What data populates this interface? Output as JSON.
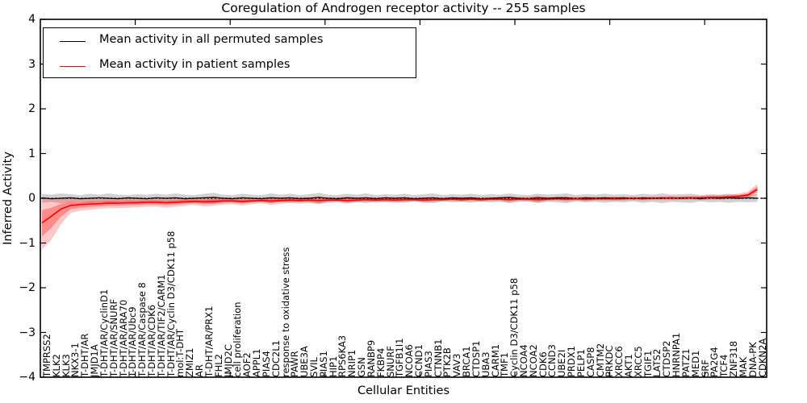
{
  "title": "Coregulation of Androgen receptor activity -- 255 samples",
  "axes": {
    "ylabel": "Inferred Activity",
    "xlabel": "Cellular Entities",
    "ytick_values": [
      4,
      3,
      2,
      1,
      0,
      -1,
      -2,
      -3,
      -4
    ],
    "ytick_labels": [
      "4",
      "3",
      "2",
      "1",
      "0",
      "−1",
      "−2",
      "−3",
      "−4"
    ],
    "xtick_units": [
      10,
      20,
      30,
      40,
      50,
      60,
      70
    ],
    "ylim": [
      -4,
      4
    ]
  },
  "colors": {
    "permuted_line": "#000000",
    "patient_line": "#ff0000",
    "permuted_band": "rgba(0,0,0,0.18)",
    "patient_band_outer": "rgba(255,0,0,0.22)",
    "patient_band_inner": "rgba(255,0,0,0.30)",
    "frame": "#000000"
  },
  "chart_data": {
    "type": "line",
    "title": "Coregulation of Androgen receptor activity -- 255 samples",
    "xlabel": "Cellular Entities",
    "ylabel": "Inferred Activity",
    "ylim": [
      -4,
      4
    ],
    "grid": false,
    "legend_position": "upper left",
    "reference_line": {
      "y": 0,
      "style": "dotted",
      "color": "#000000"
    },
    "inner_band_ratio": 0.5,
    "categories": [
      "TMPRSS2",
      "KLK2",
      "KLK3",
      "NKX3-1",
      "T-DHT/AR",
      "JMJD1A",
      "T-DHT/AR/CyclinD1",
      "T-DHT/AR/SNURF",
      "T-DHT/AR/ARA70",
      "T-DHT/AR/Ubc9",
      "T-DHT/AR/Caspase 8",
      "T-DHT/AR/CDK6",
      "T-DHT/AR/TIF2/CARM1",
      "T-DHT/AR/Cyclin D3/CDK11 p58",
      "mol:T-DHT",
      "ZMIZ1",
      "AR",
      "T-DHT/AR/PRX1",
      "FHL2",
      "JMJD2C",
      "cell proliferation",
      "AOF2",
      "APPL1",
      "PIAS4",
      "CDC2L1",
      "response to oxidative stress",
      "PAWR",
      "UBE3A",
      "SVIL",
      "PIAS1",
      "HIP1",
      "RPS6KA3",
      "NRIP1",
      "GSN",
      "RANBP9",
      "FKBP4",
      "SNURF",
      "TGFB1I1",
      "NCOA6",
      "CCND1",
      "PIAS3",
      "CTNNB1",
      "PTK2B",
      "VAV3",
      "BRCA1",
      "CTDSP1",
      "UBA3",
      "CARM1",
      "TMF1",
      "Cyclin D3/CDK11 p58",
      "NCOA4",
      "NCOA2",
      "CDK6",
      "CCND3",
      "UBE2I",
      "PRDX1",
      "PELP1",
      "CASP8",
      "CMTM2",
      "PRKDC",
      "XRCC6",
      "AKT1",
      "XRCC5",
      "TGIF1",
      "LATS2",
      "CTDSP2",
      "HNRNPA1",
      "PATZ1",
      "MED1",
      "SRF",
      "PA2G4",
      "TCF4",
      "ZNF318",
      "MAK",
      "DNA-PK",
      "CDKN2A"
    ],
    "series": [
      {
        "name": "Mean activity in all permuted samples",
        "color": "#000000",
        "line_width": 1.3,
        "band_color": "rgba(0,0,0,0.18)",
        "values": [
          0.01,
          -0.01,
          0.0,
          0.01,
          -0.01,
          0.0,
          0.01,
          0.0,
          -0.01,
          0.01,
          0.0,
          -0.01,
          0.01,
          0.0,
          0.01,
          -0.01,
          0.0,
          0.01,
          0.02,
          0.0,
          -0.01,
          0.01,
          0.0,
          -0.01,
          0.01,
          0.0,
          0.01,
          -0.01,
          0.0,
          0.02,
          0.0,
          -0.01,
          0.01,
          0.0,
          0.01,
          -0.01,
          0.01,
          0.0,
          0.01,
          -0.01,
          0.0,
          0.01,
          -0.01,
          0.01,
          0.0,
          0.01,
          -0.01,
          0.0,
          0.01,
          0.02,
          0.0,
          -0.01,
          0.01,
          0.0,
          0.01,
          0.01,
          -0.01,
          0.01,
          0.0,
          0.01,
          0.0,
          0.01,
          -0.01,
          0.01,
          0.0,
          0.01,
          0.0,
          0.01,
          0.01,
          -0.01,
          0.01,
          0.0,
          0.01,
          0.0,
          0.01,
          0.0
        ],
        "band_upper": [
          0.1,
          0.08,
          0.11,
          0.09,
          0.07,
          0.1,
          0.08,
          0.11,
          0.08,
          0.07,
          0.09,
          0.08,
          0.1,
          0.08,
          0.11,
          0.08,
          0.07,
          0.1,
          0.12,
          0.08,
          0.07,
          0.1,
          0.08,
          0.07,
          0.11,
          0.08,
          0.1,
          0.07,
          0.09,
          0.12,
          0.08,
          0.07,
          0.1,
          0.08,
          0.11,
          0.07,
          0.09,
          0.08,
          0.1,
          0.07,
          0.09,
          0.11,
          0.07,
          0.09,
          0.08,
          0.1,
          0.07,
          0.09,
          0.08,
          0.11,
          0.08,
          0.07,
          0.1,
          0.08,
          0.09,
          0.11,
          0.07,
          0.09,
          0.08,
          0.1,
          0.08,
          0.09,
          0.07,
          0.1,
          0.08,
          0.11,
          0.08,
          0.09,
          0.1,
          0.07,
          0.09,
          0.08,
          0.1,
          0.08,
          0.09,
          0.08
        ],
        "band_lower": [
          -0.1,
          -0.08,
          -0.11,
          -0.09,
          -0.07,
          -0.1,
          -0.08,
          -0.11,
          -0.08,
          -0.07,
          -0.09,
          -0.08,
          -0.1,
          -0.08,
          -0.11,
          -0.08,
          -0.07,
          -0.1,
          -0.12,
          -0.08,
          -0.07,
          -0.1,
          -0.08,
          -0.07,
          -0.11,
          -0.08,
          -0.1,
          -0.07,
          -0.09,
          -0.12,
          -0.08,
          -0.07,
          -0.1,
          -0.08,
          -0.11,
          -0.07,
          -0.09,
          -0.08,
          -0.1,
          -0.07,
          -0.09,
          -0.11,
          -0.07,
          -0.09,
          -0.08,
          -0.1,
          -0.07,
          -0.09,
          -0.08,
          -0.11,
          -0.08,
          -0.07,
          -0.1,
          -0.08,
          -0.09,
          -0.11,
          -0.07,
          -0.09,
          -0.08,
          -0.1,
          -0.08,
          -0.09,
          -0.07,
          -0.1,
          -0.08,
          -0.11,
          -0.08,
          -0.09,
          -0.1,
          -0.07,
          -0.09,
          -0.08,
          -0.1,
          -0.08,
          -0.09,
          -0.08
        ]
      },
      {
        "name": "Mean activity in patient samples",
        "color": "#ff0000",
        "line_width": 1.6,
        "band_color": "rgba(255,0,0,0.22)",
        "inner_band_color": "rgba(255,0,0,0.30)",
        "values": [
          -0.55,
          -0.4,
          -0.24,
          -0.16,
          -0.14,
          -0.13,
          -0.12,
          -0.11,
          -0.11,
          -0.1,
          -0.1,
          -0.09,
          -0.09,
          -0.1,
          -0.09,
          -0.08,
          -0.07,
          -0.08,
          -0.07,
          -0.06,
          -0.06,
          -0.07,
          -0.06,
          -0.05,
          -0.06,
          -0.05,
          -0.04,
          -0.05,
          -0.04,
          -0.05,
          -0.04,
          -0.04,
          -0.05,
          -0.04,
          -0.03,
          -0.04,
          -0.03,
          -0.04,
          -0.03,
          -0.03,
          -0.04,
          -0.03,
          -0.03,
          -0.02,
          -0.03,
          -0.02,
          -0.03,
          -0.02,
          -0.02,
          -0.03,
          -0.02,
          -0.02,
          -0.03,
          -0.02,
          -0.01,
          -0.02,
          -0.01,
          -0.02,
          -0.01,
          -0.01,
          -0.01,
          -0.01,
          0.0,
          -0.01,
          0.0,
          0.0,
          0.01,
          0.0,
          0.01,
          0.01,
          0.02,
          0.02,
          0.03,
          0.04,
          0.07,
          0.2
        ],
        "band_upper": [
          0.02,
          -0.02,
          -0.01,
          0.0,
          -0.01,
          -0.01,
          -0.01,
          0.0,
          -0.01,
          0.0,
          -0.01,
          0.0,
          0.0,
          -0.01,
          0.0,
          0.01,
          0.01,
          0.02,
          0.03,
          0.02,
          0.01,
          0.02,
          0.01,
          0.01,
          0.03,
          0.02,
          0.02,
          0.02,
          0.02,
          0.03,
          0.02,
          0.01,
          0.04,
          0.01,
          0.02,
          0.02,
          0.02,
          0.02,
          0.02,
          0.01,
          0.02,
          0.02,
          0.01,
          0.02,
          0.02,
          0.02,
          0.02,
          0.02,
          0.02,
          0.03,
          0.02,
          0.03,
          0.06,
          0.02,
          0.03,
          0.03,
          0.03,
          0.03,
          0.03,
          0.03,
          0.04,
          0.03,
          0.04,
          0.03,
          0.04,
          0.04,
          0.05,
          0.04,
          0.05,
          0.05,
          0.07,
          0.07,
          0.08,
          0.1,
          0.15,
          0.32
        ],
        "band_lower": [
          -1.15,
          -0.92,
          -0.58,
          -0.33,
          -0.28,
          -0.26,
          -0.24,
          -0.22,
          -0.22,
          -0.21,
          -0.2,
          -0.19,
          -0.19,
          -0.21,
          -0.19,
          -0.17,
          -0.15,
          -0.18,
          -0.17,
          -0.14,
          -0.13,
          -0.16,
          -0.13,
          -0.11,
          -0.15,
          -0.12,
          -0.1,
          -0.12,
          -0.1,
          -0.13,
          -0.1,
          -0.09,
          -0.12,
          -0.09,
          -0.08,
          -0.1,
          -0.08,
          -0.1,
          -0.08,
          -0.07,
          -0.1,
          -0.08,
          -0.07,
          -0.06,
          -0.08,
          -0.06,
          -0.08,
          -0.06,
          -0.06,
          -0.09,
          -0.06,
          -0.07,
          -0.1,
          -0.06,
          -0.05,
          -0.07,
          -0.05,
          -0.07,
          -0.05,
          -0.05,
          -0.06,
          -0.05,
          -0.04,
          -0.05,
          -0.04,
          -0.04,
          -0.04,
          -0.04,
          -0.03,
          -0.04,
          -0.03,
          -0.03,
          -0.02,
          -0.02,
          0.0,
          0.08
        ]
      }
    ]
  }
}
